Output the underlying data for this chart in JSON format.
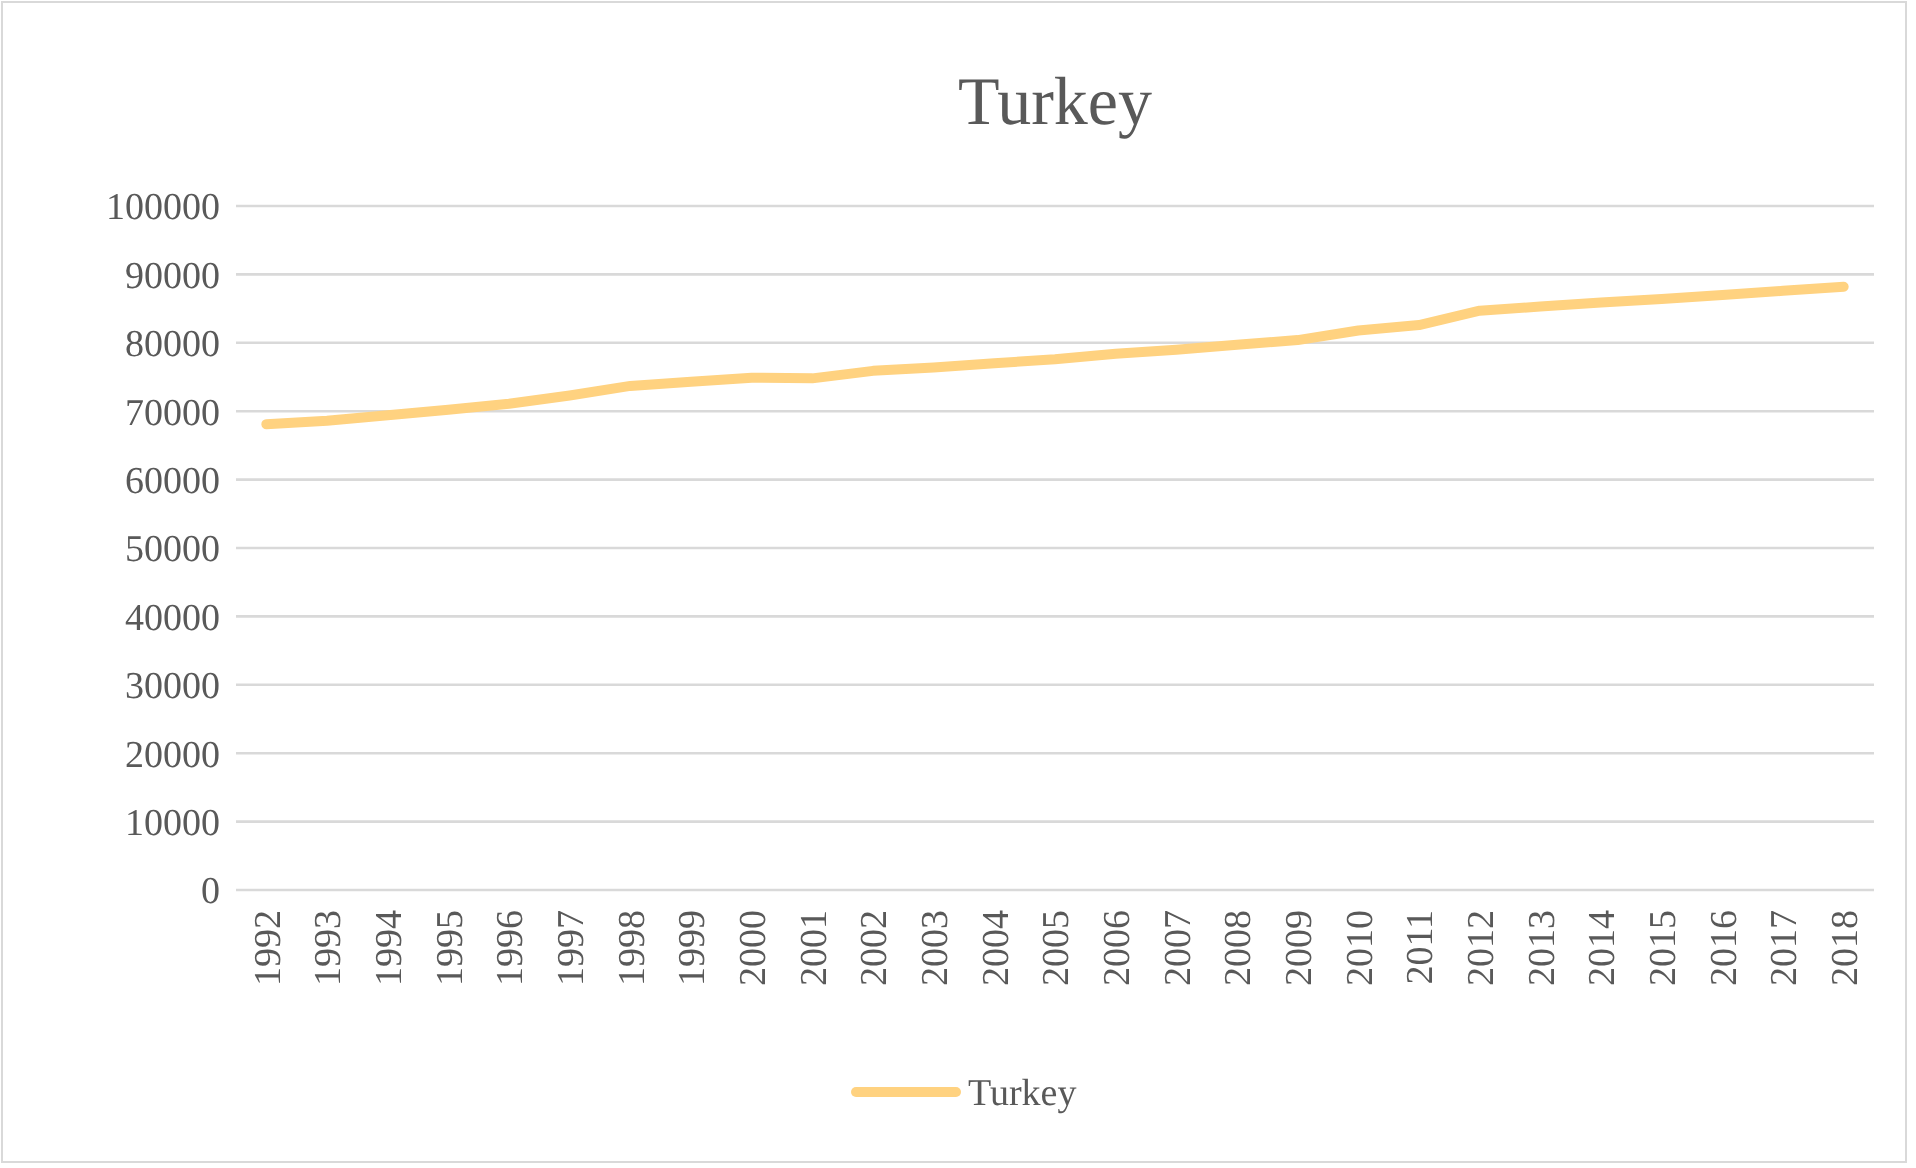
{
  "chart_data": {
    "type": "line",
    "title": "Turkey",
    "categories": [
      "1992",
      "1993",
      "1994",
      "1995",
      "1996",
      "1997",
      "1998",
      "1999",
      "2000",
      "2001",
      "2002",
      "2003",
      "2004",
      "2005",
      "2006",
      "2007",
      "2008",
      "2009",
      "2010",
      "2011",
      "2012",
      "2013",
      "2014",
      "2015",
      "2016",
      "2017",
      "2018"
    ],
    "series": [
      {
        "name": "Turkey",
        "color": "#ffd280",
        "values": [
          68100,
          68600,
          69400,
          70200,
          71100,
          72300,
          73700,
          74300,
          74900,
          74800,
          75900,
          76400,
          77000,
          77600,
          78400,
          79000,
          79700,
          80400,
          81800,
          82600,
          84700,
          85300,
          85900,
          86400,
          87000,
          87600,
          88200
        ]
      }
    ],
    "ylim": [
      0,
      100000
    ],
    "yticks": [
      0,
      10000,
      20000,
      30000,
      40000,
      50000,
      60000,
      70000,
      80000,
      90000,
      100000
    ],
    "grid": "y",
    "legend": "bottom",
    "marker": "none",
    "line_style": "solid"
  }
}
